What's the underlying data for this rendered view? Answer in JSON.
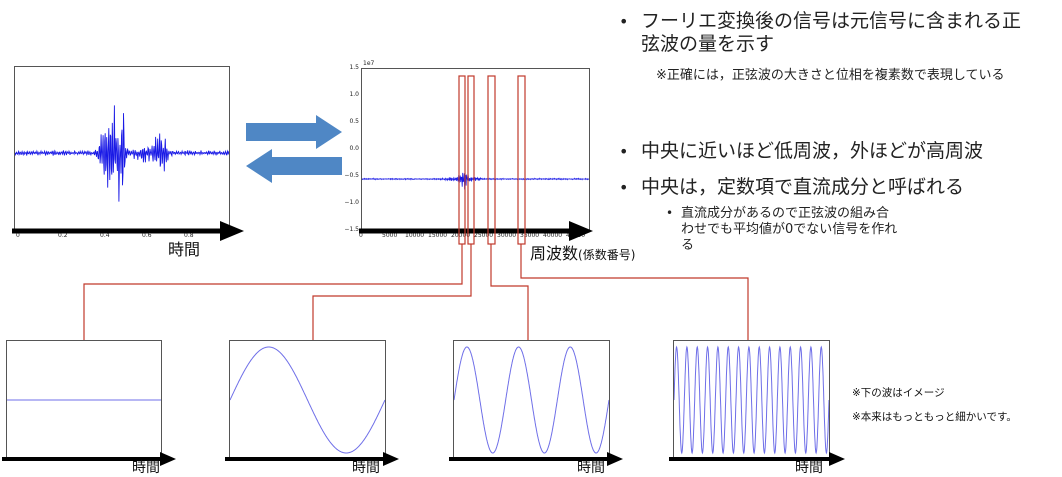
{
  "time_plot": {
    "x_ticks": [
      "0",
      "0.2",
      "0.4",
      "0.6",
      "0.8"
    ],
    "axis_label": "時間"
  },
  "freq_plot": {
    "exponent": "1e7",
    "y_ticks": [
      "1.5",
      "1.0",
      "0.5",
      "0.0",
      "−0.5",
      "−1.0",
      "−1.5"
    ],
    "x_ticks": [
      "0",
      "5000",
      "10000",
      "15000",
      "20000",
      "25000",
      "30000",
      "35000",
      "40000",
      "45000"
    ],
    "axis_label": "周波数",
    "axis_label_suffix": "(係数番号)"
  },
  "bullets": [
    {
      "text": "フーリエ変換後の信号は元信号に含まれる正弦波の量を示す",
      "sub": "※正確には，正弦波の大きさと位相を複素数で表現している"
    },
    {
      "text": "中央に近いほど低周波，外ほどが高周波"
    },
    {
      "text": "中央は，定数項で直流成分と呼ばれる",
      "sub": "直流成分があるので正弦波の組み合わせでも平均値が0でない信号を作れる"
    }
  ],
  "wave_plots": [
    {
      "cycles": 0,
      "axis_label": "時間"
    },
    {
      "cycles": 1,
      "axis_label": "時間"
    },
    {
      "cycles": 3,
      "axis_label": "時間"
    },
    {
      "cycles": 15,
      "axis_label": "時間"
    }
  ],
  "notes": {
    "line1": "※下の波はイメージ",
    "line2": "※本来はもっともっと細かいです。"
  },
  "colors": {
    "signal": "#1a1ae6",
    "wave": "#6f6fe8",
    "highlight": "#c0392b",
    "arrow": "#4f87c5"
  }
}
